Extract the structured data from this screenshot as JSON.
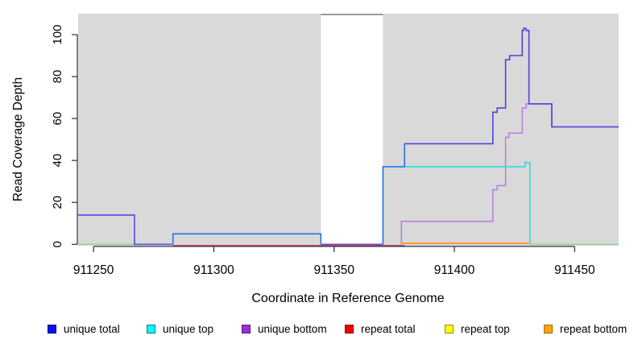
{
  "figure": {
    "xlabel": "Coordinate in Reference Genome",
    "ylabel": "Read Coverage Depth",
    "x_ticks": [
      911250,
      911300,
      911350,
      911400,
      911450
    ],
    "y_ticks": [
      0,
      20,
      40,
      60,
      80,
      100
    ],
    "panel_bg": "#d9d9d9",
    "mask_band": {
      "x_start": 911344.5,
      "x_end": 911370.3,
      "fill": "#ffffff",
      "top_border": "#999999"
    }
  },
  "chart_data": {
    "type": "line",
    "subtype": "step-coverage",
    "title": "",
    "xlabel": "Coordinate in Reference Genome",
    "ylabel": "Read Coverage Depth",
    "xlim": [
      911243.6,
      911468.3
    ],
    "ylim": [
      0,
      110
    ],
    "grid": false,
    "legend_position": "bottom",
    "series": [
      {
        "name": "unique total",
        "color": "#0000ee",
        "steps": [
          [
            911244,
            14
          ],
          [
            911267,
            0
          ],
          [
            911283,
            5
          ],
          [
            911344,
            0
          ],
          [
            911370,
            37
          ],
          [
            911379,
            48
          ],
          [
            911416,
            63
          ],
          [
            911418,
            65
          ],
          [
            911421,
            88
          ],
          [
            911423,
            90
          ],
          [
            911428,
            102
          ],
          [
            911429,
            103
          ],
          [
            911430,
            102
          ],
          [
            911431,
            67
          ],
          [
            911440,
            56
          ]
        ]
      },
      {
        "name": "unique top",
        "color": "#00ffff",
        "steps": [
          [
            911244,
            0
          ],
          [
            911283,
            5
          ],
          [
            911344,
            0
          ],
          [
            911370,
            37
          ],
          [
            911429,
            39
          ],
          [
            911431,
            0
          ]
        ]
      },
      {
        "name": "unique bottom",
        "color": "#9932cc",
        "steps": [
          [
            911244,
            14
          ],
          [
            911267,
            0
          ],
          [
            911378,
            11
          ],
          [
            911416,
            26
          ],
          [
            911418,
            28
          ],
          [
            911421,
            51
          ],
          [
            911423,
            53
          ],
          [
            911428,
            65
          ],
          [
            911430,
            67
          ],
          [
            911440,
            56
          ]
        ]
      },
      {
        "name": "repeat total",
        "color": "#ee0000",
        "steps": [
          [
            911244,
            0
          ]
        ]
      },
      {
        "name": "repeat top",
        "color": "#ffff00",
        "steps": [
          [
            911244,
            0
          ]
        ]
      },
      {
        "name": "repeat bottom",
        "color": "#ffa500",
        "steps": [
          [
            911244,
            0
          ],
          [
            911378,
            1
          ],
          [
            911431,
            0
          ]
        ]
      }
    ],
    "render_polylines": [
      {
        "name": "zero-line-left",
        "color": "#8fd695",
        "width": 1.5,
        "points": [
          [
            911243.6,
            0
          ],
          [
            911267,
            0
          ]
        ]
      },
      {
        "name": "zero-line-right",
        "color": "#8fd695",
        "width": 1.5,
        "points": [
          [
            911431.4,
            0
          ],
          [
            911468.3,
            0
          ]
        ]
      },
      {
        "name": "unique-bottom-left",
        "color": "#b77cde",
        "width": 1.5,
        "points": [
          [
            911243.6,
            14
          ],
          [
            911267,
            14
          ],
          [
            911267,
            0
          ],
          [
            911283,
            0
          ]
        ]
      },
      {
        "name": "unique-bottom-main",
        "color": "#b77cde",
        "width": 1.5,
        "points": [
          [
            911378,
            0
          ],
          [
            911378,
            11
          ],
          [
            911416,
            11
          ],
          [
            911416,
            26
          ],
          [
            911417.8,
            26
          ],
          [
            911417.8,
            28
          ],
          [
            911421.3,
            28
          ],
          [
            911421.3,
            51
          ],
          [
            911422.7,
            51
          ],
          [
            911422.7,
            53
          ],
          [
            911428.2,
            53
          ],
          [
            911428.2,
            65
          ],
          [
            911429.9,
            65
          ],
          [
            911429.9,
            67
          ],
          [
            911431,
            67
          ],
          [
            911440.5,
            67
          ],
          [
            911440.5,
            56
          ],
          [
            911468.3,
            56
          ]
        ]
      },
      {
        "name": "unique-top",
        "color": "#16dfe8",
        "width": 1.5,
        "points": [
          [
            911370.3,
            0
          ],
          [
            911370.3,
            37
          ],
          [
            911429.4,
            37
          ],
          [
            911429.4,
            39
          ],
          [
            911431.4,
            39
          ],
          [
            911431.4,
            0
          ]
        ]
      },
      {
        "name": "repeat-total",
        "color": "#e04050",
        "width": 1.4,
        "points": [
          [
            911283,
            -0.55
          ],
          [
            911379.3,
            -0.55
          ]
        ]
      },
      {
        "name": "repeat-bottom",
        "color": "#ff8c00",
        "width": 1.6,
        "points": [
          [
            911378,
            0.5
          ],
          [
            911431,
            0.5
          ]
        ]
      },
      {
        "name": "unique-total-left",
        "color": "#5a50e0",
        "width": 1.6,
        "points": [
          [
            911243.6,
            14
          ],
          [
            911267,
            14
          ],
          [
            911267,
            0
          ],
          [
            911283,
            0
          ]
        ]
      },
      {
        "name": "unique-total-low",
        "color": "#2e6ff0",
        "width": 1.6,
        "points": [
          [
            911283,
            0
          ],
          [
            911283,
            5
          ],
          [
            911344.5,
            5
          ],
          [
            911344.5,
            0
          ]
        ]
      },
      {
        "name": "unique-total-band",
        "color": "#5a50e0",
        "width": 1.6,
        "points": [
          [
            911344.5,
            0
          ],
          [
            911370.3,
            0
          ]
        ]
      },
      {
        "name": "unique-total-rise",
        "color": "#2e6ff0",
        "width": 1.6,
        "points": [
          [
            911370.3,
            0
          ],
          [
            911370.3,
            37
          ],
          [
            911379.3,
            37
          ],
          [
            911379.3,
            48
          ]
        ]
      },
      {
        "name": "unique-total-peak",
        "color": "#4c44dc",
        "width": 1.6,
        "points": [
          [
            911379.3,
            48
          ],
          [
            911416,
            48
          ],
          [
            911416,
            63
          ],
          [
            911417.8,
            63
          ],
          [
            911417.8,
            65
          ],
          [
            911421.3,
            65
          ],
          [
            911421.3,
            88
          ],
          [
            911423,
            88
          ],
          [
            911423,
            90
          ],
          [
            911428.2,
            90
          ],
          [
            911428.2,
            102
          ],
          [
            911428.8,
            102
          ],
          [
            911428.8,
            103
          ],
          [
            911429.8,
            103
          ],
          [
            911429.8,
            102
          ],
          [
            911431,
            102
          ],
          [
            911431,
            67
          ],
          [
            911440.5,
            67
          ],
          [
            911440.5,
            56
          ],
          [
            911468.3,
            56
          ]
        ]
      }
    ]
  },
  "legend": {
    "items": [
      {
        "label": "unique total",
        "fill": "#0f0fee",
        "border": "#00008b"
      },
      {
        "label": "unique top",
        "fill": "#00ffff",
        "border": "#007a7a"
      },
      {
        "label": "unique bottom",
        "fill": "#9932cc",
        "border": "#5e1487"
      },
      {
        "label": "repeat total",
        "fill": "#ee0000",
        "border": "#8b0000"
      },
      {
        "label": "repeat top",
        "fill": "#ffff00",
        "border": "#8f8f00"
      },
      {
        "label": "repeat bottom",
        "fill": "#ffa500",
        "border": "#9c6700"
      }
    ]
  }
}
